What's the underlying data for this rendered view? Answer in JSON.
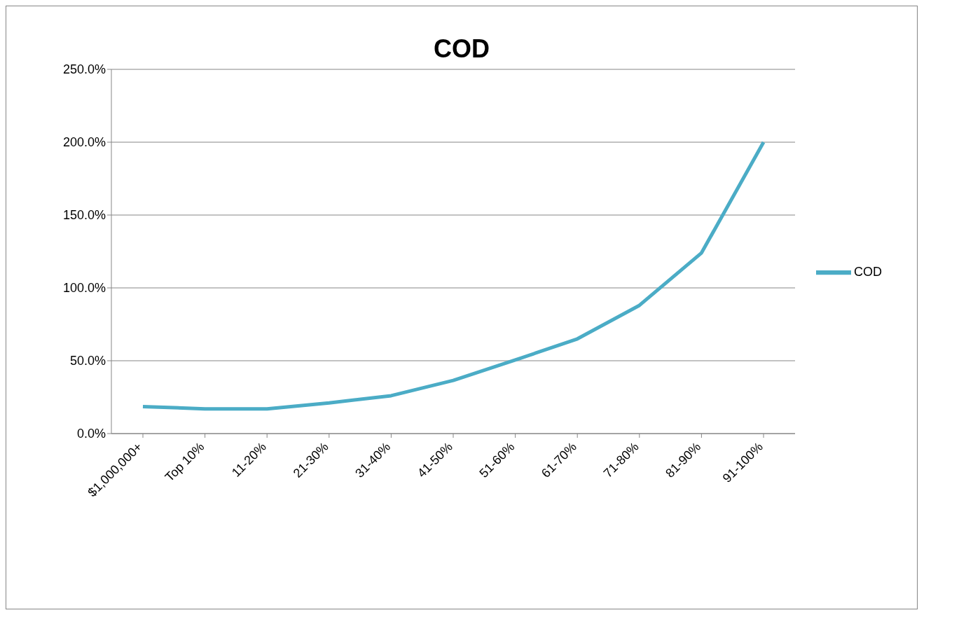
{
  "chart_data": {
    "type": "line",
    "title": "COD",
    "categories": [
      "$1,000,000+",
      "Top 10%",
      "11-20%",
      "21-30%",
      "31-40%",
      "41-50%",
      "51-60%",
      "61-70%",
      "71-80%",
      "81-90%",
      "91-100%"
    ],
    "series": [
      {
        "name": "COD",
        "color": "#4bacc6",
        "values": [
          18.5,
          17,
          17,
          21,
          26,
          36.5,
          50.5,
          65,
          88,
          124,
          200
        ]
      }
    ],
    "ylim": [
      0,
      250
    ],
    "yticks": [
      {
        "value": 0,
        "label": "0.0%"
      },
      {
        "value": 50,
        "label": "50.0%"
      },
      {
        "value": 100,
        "label": "100.0%"
      },
      {
        "value": 150,
        "label": "150.0%"
      },
      {
        "value": 200,
        "label": "200.0%"
      },
      {
        "value": 250,
        "label": "250.0%"
      }
    ],
    "grid": "y",
    "legend": "right",
    "marker": "none",
    "line_style": "solid"
  }
}
